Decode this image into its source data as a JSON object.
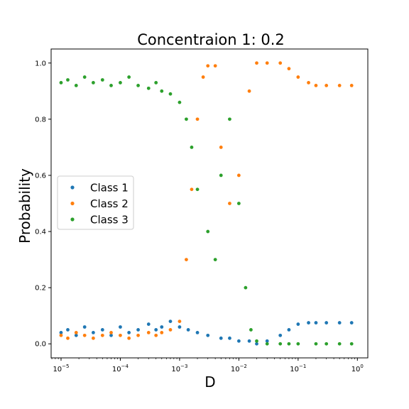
{
  "chart_data": {
    "type": "scatter",
    "title": "Concentraion 1: 0.2",
    "xlabel": "D",
    "ylabel": "Probability",
    "xscale": "log",
    "xlim": [
      6.8e-06,
      1.5
    ],
    "ylim": [
      -0.05,
      1.05
    ],
    "x_ticks": [
      {
        "value": 1e-05,
        "base": "10",
        "exp": "−5"
      },
      {
        "value": 0.0001,
        "base": "10",
        "exp": "−4"
      },
      {
        "value": 0.001,
        "base": "10",
        "exp": "−3"
      },
      {
        "value": 0.01,
        "base": "10",
        "exp": "−2"
      },
      {
        "value": 0.1,
        "base": "10",
        "exp": "−1"
      },
      {
        "value": 1,
        "base": "10",
        "exp": "0"
      }
    ],
    "y_ticks": [
      {
        "value": 0.0,
        "label": "0.0"
      },
      {
        "value": 0.2,
        "label": "0.2"
      },
      {
        "value": 0.4,
        "label": "0.4"
      },
      {
        "value": 0.6,
        "label": "0.6"
      },
      {
        "value": 0.8,
        "label": "0.8"
      },
      {
        "value": 1.0,
        "label": "1.0"
      }
    ],
    "grid": false,
    "legend_position": "center-left",
    "series": [
      {
        "name": "Class 1",
        "color": "#1f77b4",
        "points": [
          [
            1e-05,
            0.04
          ],
          [
            1.3e-05,
            0.05
          ],
          [
            1.8e-05,
            0.03
          ],
          [
            2.5e-05,
            0.06
          ],
          [
            3.5e-05,
            0.04
          ],
          [
            5e-05,
            0.05
          ],
          [
            7e-05,
            0.03
          ],
          [
            0.0001,
            0.06
          ],
          [
            0.00014,
            0.04
          ],
          [
            0.0002,
            0.05
          ],
          [
            0.0003,
            0.07
          ],
          [
            0.0004,
            0.05
          ],
          [
            0.0005,
            0.06
          ],
          [
            0.0007,
            0.08
          ],
          [
            0.001,
            0.06
          ],
          [
            0.0014,
            0.05
          ],
          [
            0.002,
            0.04
          ],
          [
            0.003,
            0.03
          ],
          [
            0.005,
            0.02
          ],
          [
            0.007,
            0.02
          ],
          [
            0.01,
            0.01
          ],
          [
            0.015,
            0.01
          ],
          [
            0.02,
            0.0
          ],
          [
            0.03,
            0.01
          ],
          [
            0.05,
            0.03
          ],
          [
            0.07,
            0.05
          ],
          [
            0.1,
            0.07
          ],
          [
            0.15,
            0.075
          ],
          [
            0.2,
            0.075
          ],
          [
            0.3,
            0.075
          ],
          [
            0.5,
            0.075
          ],
          [
            0.8,
            0.075
          ]
        ]
      },
      {
        "name": "Class 2",
        "color": "#ff7f0e",
        "points": [
          [
            1e-05,
            0.03
          ],
          [
            1.3e-05,
            0.02
          ],
          [
            1.8e-05,
            0.04
          ],
          [
            2.5e-05,
            0.03
          ],
          [
            3.5e-05,
            0.02
          ],
          [
            5e-05,
            0.03
          ],
          [
            7e-05,
            0.04
          ],
          [
            0.0001,
            0.03
          ],
          [
            0.00014,
            0.02
          ],
          [
            0.0002,
            0.03
          ],
          [
            0.0003,
            0.04
          ],
          [
            0.0004,
            0.03
          ],
          [
            0.0005,
            0.04
          ],
          [
            0.0007,
            0.05
          ],
          [
            0.001,
            0.08
          ],
          [
            0.0013,
            0.3
          ],
          [
            0.0016,
            0.55
          ],
          [
            0.002,
            0.8
          ],
          [
            0.0025,
            0.95
          ],
          [
            0.003,
            0.99
          ],
          [
            0.004,
            0.99
          ],
          [
            0.005,
            0.7
          ],
          [
            0.007,
            0.5
          ],
          [
            0.01,
            0.6
          ],
          [
            0.015,
            0.9
          ],
          [
            0.02,
            1.0
          ],
          [
            0.03,
            1.0
          ],
          [
            0.05,
            1.0
          ],
          [
            0.07,
            0.98
          ],
          [
            0.1,
            0.95
          ],
          [
            0.15,
            0.93
          ],
          [
            0.2,
            0.92
          ],
          [
            0.3,
            0.92
          ],
          [
            0.5,
            0.92
          ],
          [
            0.8,
            0.92
          ]
        ]
      },
      {
        "name": "Class 3",
        "color": "#2ca02c",
        "points": [
          [
            1e-05,
            0.93
          ],
          [
            1.3e-05,
            0.94
          ],
          [
            1.8e-05,
            0.92
          ],
          [
            2.5e-05,
            0.95
          ],
          [
            3.5e-05,
            0.93
          ],
          [
            5e-05,
            0.94
          ],
          [
            7e-05,
            0.92
          ],
          [
            0.0001,
            0.93
          ],
          [
            0.00014,
            0.95
          ],
          [
            0.0002,
            0.92
          ],
          [
            0.0003,
            0.91
          ],
          [
            0.0004,
            0.93
          ],
          [
            0.0005,
            0.9
          ],
          [
            0.0007,
            0.89
          ],
          [
            0.001,
            0.86
          ],
          [
            0.0013,
            0.8
          ],
          [
            0.0016,
            0.7
          ],
          [
            0.002,
            0.55
          ],
          [
            0.003,
            0.4
          ],
          [
            0.004,
            0.3
          ],
          [
            0.005,
            0.6
          ],
          [
            0.007,
            0.8
          ],
          [
            0.01,
            0.5
          ],
          [
            0.013,
            0.2
          ],
          [
            0.016,
            0.05
          ],
          [
            0.02,
            0.01
          ],
          [
            0.03,
            0.0
          ],
          [
            0.05,
            0.0
          ],
          [
            0.07,
            0.0
          ],
          [
            0.1,
            0.0
          ],
          [
            0.2,
            0.0
          ],
          [
            0.3,
            0.0
          ],
          [
            0.5,
            0.0
          ],
          [
            0.8,
            0.0
          ]
        ]
      }
    ]
  }
}
